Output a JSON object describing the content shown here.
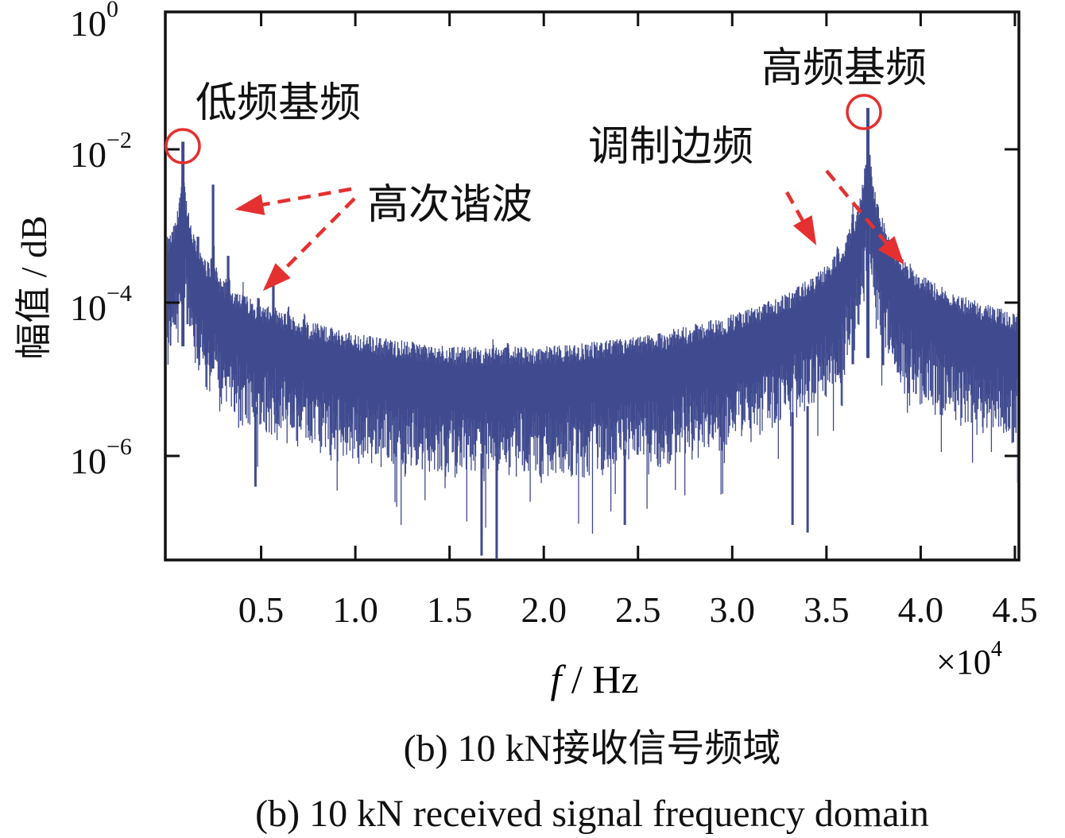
{
  "chart_data": {
    "type": "line",
    "title": "",
    "xlabel_italic": "f",
    "xlabel_rest": " / Hz",
    "x_multiplier_base": "×10",
    "x_multiplier_exp": "4",
    "ylabel": "幅值 / dB",
    "yscale": "log",
    "xlim": [
      0,
      4.5
    ],
    "ylim_log10": [
      -7.4,
      -0.2
    ],
    "x_ticks": [
      "0.5",
      "1.0",
      "1.5",
      "2.0",
      "2.5",
      "3.0",
      "3.5",
      "4.0",
      "4.5"
    ],
    "x_tick_values": [
      0.5,
      1.0,
      1.5,
      2.0,
      2.5,
      3.0,
      3.5,
      4.0,
      4.5
    ],
    "y_ticks": [
      {
        "base": "10",
        "exp": "0",
        "log10": 0
      },
      {
        "base": "10",
        "exp": "−2",
        "log10": -2
      },
      {
        "base": "10",
        "exp": "−4",
        "log10": -4
      },
      {
        "base": "10",
        "exp": "−6",
        "log10": -6
      }
    ],
    "series_color": "#3f4a8f",
    "annotation_color": "#e53030",
    "noise_envelope": {
      "x": [
        0.0,
        0.2,
        0.5,
        1.0,
        1.5,
        2.0,
        2.5,
        3.0,
        3.3,
        3.5,
        3.7,
        4.0,
        4.3,
        4.5
      ],
      "upper_log10": [
        -3.6,
        -4.0,
        -4.4,
        -4.75,
        -4.95,
        -5.0,
        -4.9,
        -4.65,
        -4.45,
        -4.25,
        -3.9,
        -4.25,
        -4.45,
        -4.55
      ],
      "depth_decades": 1.3
    },
    "peaks": [
      {
        "x": 0.085,
        "log10": -1.9,
        "label": "low-fundamental"
      },
      {
        "x": 0.165,
        "log10": -3.14
      },
      {
        "x": 0.245,
        "log10": -2.46
      },
      {
        "x": 0.325,
        "log10": -3.39
      },
      {
        "x": 0.405,
        "log10": -3.92
      },
      {
        "x": 0.485,
        "log10": -3.94
      },
      {
        "x": 0.565,
        "log10": -3.66
      },
      {
        "x": 0.645,
        "log10": -4.16
      },
      {
        "x": 0.73,
        "log10": -4.38
      },
      {
        "x": 1.73,
        "log10": -4.6
      },
      {
        "x": 1.81,
        "log10": -4.6
      },
      {
        "x": 3.4,
        "log10": -3.94
      },
      {
        "x": 3.56,
        "log10": -3.3
      },
      {
        "x": 3.64,
        "log10": -2.85
      },
      {
        "x": 3.72,
        "log10": -1.46,
        "label": "high-fundamental"
      },
      {
        "x": 3.8,
        "log10": -3.26
      },
      {
        "x": 3.88,
        "log10": -3.71
      },
      {
        "x": 3.96,
        "log10": -3.7
      }
    ],
    "dips": [
      {
        "x": 0.47,
        "log10": -6.4
      },
      {
        "x": 1.67,
        "log10": -7.3
      },
      {
        "x": 1.75,
        "log10": -7.4
      },
      {
        "x": 2.43,
        "log10": -6.9
      },
      {
        "x": 3.32,
        "log10": -6.9
      },
      {
        "x": 3.4,
        "log10": -7.0
      }
    ],
    "annotations": {
      "low_fundamental": "低频基频",
      "high_fundamental": "高频基频",
      "harmonics": "高次谐波",
      "sidebands": "调制边频"
    }
  },
  "caption": {
    "zh_prefix": "(b)  10 kN",
    "zh_rest": "接收信号频域",
    "en": "(b)  10 kN received signal frequency domain"
  }
}
